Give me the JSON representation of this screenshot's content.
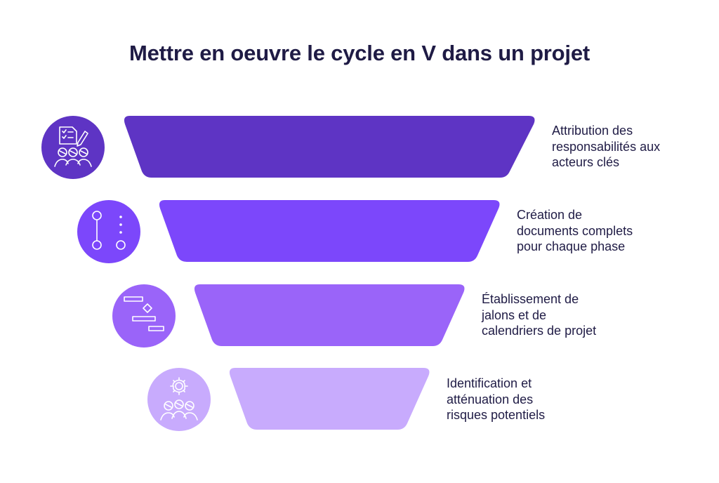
{
  "title": "Mettre en oeuvre le cycle en V dans un projet",
  "colors": {
    "step1": "#5e34c4",
    "step2": "#7c47fb",
    "step3": "#9a64f9",
    "step4": "#c8abfd",
    "icon1": "#5e34c4",
    "icon2": "#7c47fb",
    "icon3": "#9a64f9",
    "icon4": "#c8abfd",
    "text": "#1f1b45"
  },
  "steps": [
    {
      "icon": "checklist-team-icon",
      "lines": [
        "Attribution des",
        "responsabilités aux",
        "acteurs clés"
      ]
    },
    {
      "icon": "git-branch-icon",
      "lines": [
        "Création de",
        "documents complets",
        "pour chaque phase"
      ]
    },
    {
      "icon": "gantt-milestone-icon",
      "lines": [
        "Établissement de",
        "jalons et de",
        "calendriers de projet"
      ]
    },
    {
      "icon": "risk-team-icon",
      "lines": [
        "Identification et",
        "atténuation des",
        "risques potentiels"
      ]
    }
  ]
}
